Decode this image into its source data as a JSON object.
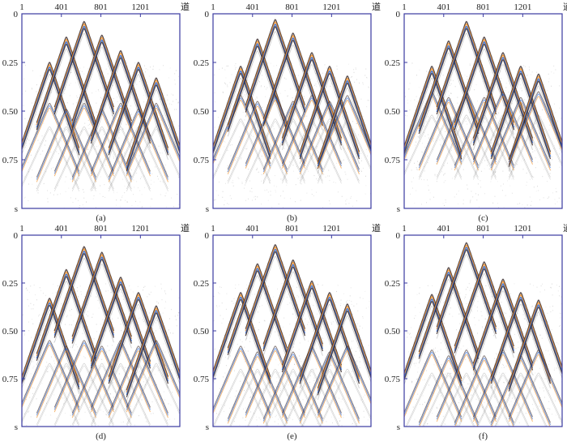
{
  "chart_data": [
    {
      "type": "heatmap",
      "caption": "(a)",
      "x_ticks": [
        "1",
        "401",
        "801",
        "1201"
      ],
      "x_unit": "道",
      "y_ticks": [
        "0",
        "0.25",
        "0.50",
        "0.75"
      ],
      "y_unit": "s",
      "ylim": [
        0,
        1.0
      ],
      "apexes": [
        [
          0.28,
          0.25
        ],
        [
          0.45,
          0.12
        ],
        [
          0.63,
          0.04
        ],
        [
          0.81,
          0.11
        ],
        [
          1.0,
          0.19
        ],
        [
          1.18,
          0.25
        ],
        [
          1.36,
          0.33
        ]
      ],
      "second_apex_depth": 0.46,
      "colors": {
        "frame": "#3a3aa0",
        "neg": "#1f5fd0",
        "pos": "#f08a1c",
        "dark": "#3a2a2a"
      }
    },
    {
      "type": "heatmap",
      "caption": "(b)",
      "x_ticks": [
        "1",
        "401",
        "801",
        "1201"
      ],
      "x_unit": "道",
      "y_ticks": [
        "0",
        "0.25",
        "0.50",
        "0.75"
      ],
      "y_unit": "s",
      "ylim": [
        0,
        1.0
      ],
      "apexes": [
        [
          0.28,
          0.27
        ],
        [
          0.45,
          0.13
        ],
        [
          0.63,
          0.03
        ],
        [
          0.81,
          0.1
        ],
        [
          1.0,
          0.2
        ],
        [
          1.18,
          0.27
        ],
        [
          1.36,
          0.32
        ]
      ],
      "second_apex_depth": 0.42,
      "colors": {
        "frame": "#3a3aa0",
        "neg": "#1f5fd0",
        "pos": "#f08a1c",
        "dark": "#3a2a2a"
      }
    },
    {
      "type": "heatmap",
      "caption": "(c)",
      "x_ticks": [
        "1",
        "401",
        "801",
        "1201"
      ],
      "x_unit": "道",
      "y_ticks": [
        "0",
        "0.25",
        "0.50",
        "0.75"
      ],
      "y_unit": "s",
      "ylim": [
        0,
        1.0
      ],
      "apexes": [
        [
          0.28,
          0.27
        ],
        [
          0.45,
          0.14
        ],
        [
          0.63,
          0.04
        ],
        [
          0.81,
          0.12
        ],
        [
          1.0,
          0.2
        ],
        [
          1.18,
          0.27
        ],
        [
          1.36,
          0.31
        ]
      ],
      "second_apex_depth": 0.4,
      "colors": {
        "frame": "#3a3aa0",
        "neg": "#1f5fd0",
        "pos": "#f08a1c",
        "dark": "#3a2a2a"
      }
    },
    {
      "type": "heatmap",
      "caption": "(d)",
      "x_ticks": [
        "1",
        "401",
        "801",
        "1201"
      ],
      "x_unit": "道",
      "y_ticks": [
        "0",
        "0.25",
        "0.50",
        "0.75"
      ],
      "y_unit": "s",
      "ylim": [
        0,
        1.0
      ],
      "apexes": [
        [
          0.28,
          0.33
        ],
        [
          0.45,
          0.18
        ],
        [
          0.63,
          0.06
        ],
        [
          0.81,
          0.09
        ],
        [
          1.0,
          0.22
        ],
        [
          1.18,
          0.3
        ],
        [
          1.36,
          0.37
        ]
      ],
      "second_apex_depth": 0.55,
      "colors": {
        "frame": "#3a3aa0",
        "neg": "#1f5fd0",
        "pos": "#f08a1c",
        "dark": "#3a2a2a"
      }
    },
    {
      "type": "heatmap",
      "caption": "(e)",
      "x_ticks": [
        "1",
        "401",
        "801",
        "1201"
      ],
      "x_unit": "道",
      "y_ticks": [
        "0",
        "0.25",
        "0.50",
        "0.75"
      ],
      "y_unit": "s",
      "ylim": [
        0,
        1.0
      ],
      "apexes": [
        [
          0.28,
          0.3
        ],
        [
          0.45,
          0.15
        ],
        [
          0.63,
          0.05
        ],
        [
          0.81,
          0.13
        ],
        [
          1.0,
          0.24
        ],
        [
          1.18,
          0.3
        ],
        [
          1.36,
          0.36
        ]
      ],
      "second_apex_depth": 0.58,
      "colors": {
        "frame": "#3a3aa0",
        "neg": "#1f5fd0",
        "pos": "#f08a1c",
        "dark": "#3a2a2a"
      }
    },
    {
      "type": "heatmap",
      "caption": "(f)",
      "x_ticks": [
        "1",
        "401",
        "801",
        "1201"
      ],
      "x_unit": "道",
      "y_ticks": [
        "0",
        "0.25",
        "0.50",
        "0.75"
      ],
      "y_unit": "s",
      "ylim": [
        0,
        1.0
      ],
      "apexes": [
        [
          0.28,
          0.31
        ],
        [
          0.45,
          0.17
        ],
        [
          0.63,
          0.04
        ],
        [
          0.81,
          0.14
        ],
        [
          1.0,
          0.23
        ],
        [
          1.18,
          0.3
        ],
        [
          1.36,
          0.34
        ]
      ],
      "second_apex_depth": 0.6,
      "colors": {
        "frame": "#3a3aa0",
        "neg": "#1f5fd0",
        "pos": "#f08a1c",
        "dark": "#3a2a2a"
      }
    }
  ]
}
